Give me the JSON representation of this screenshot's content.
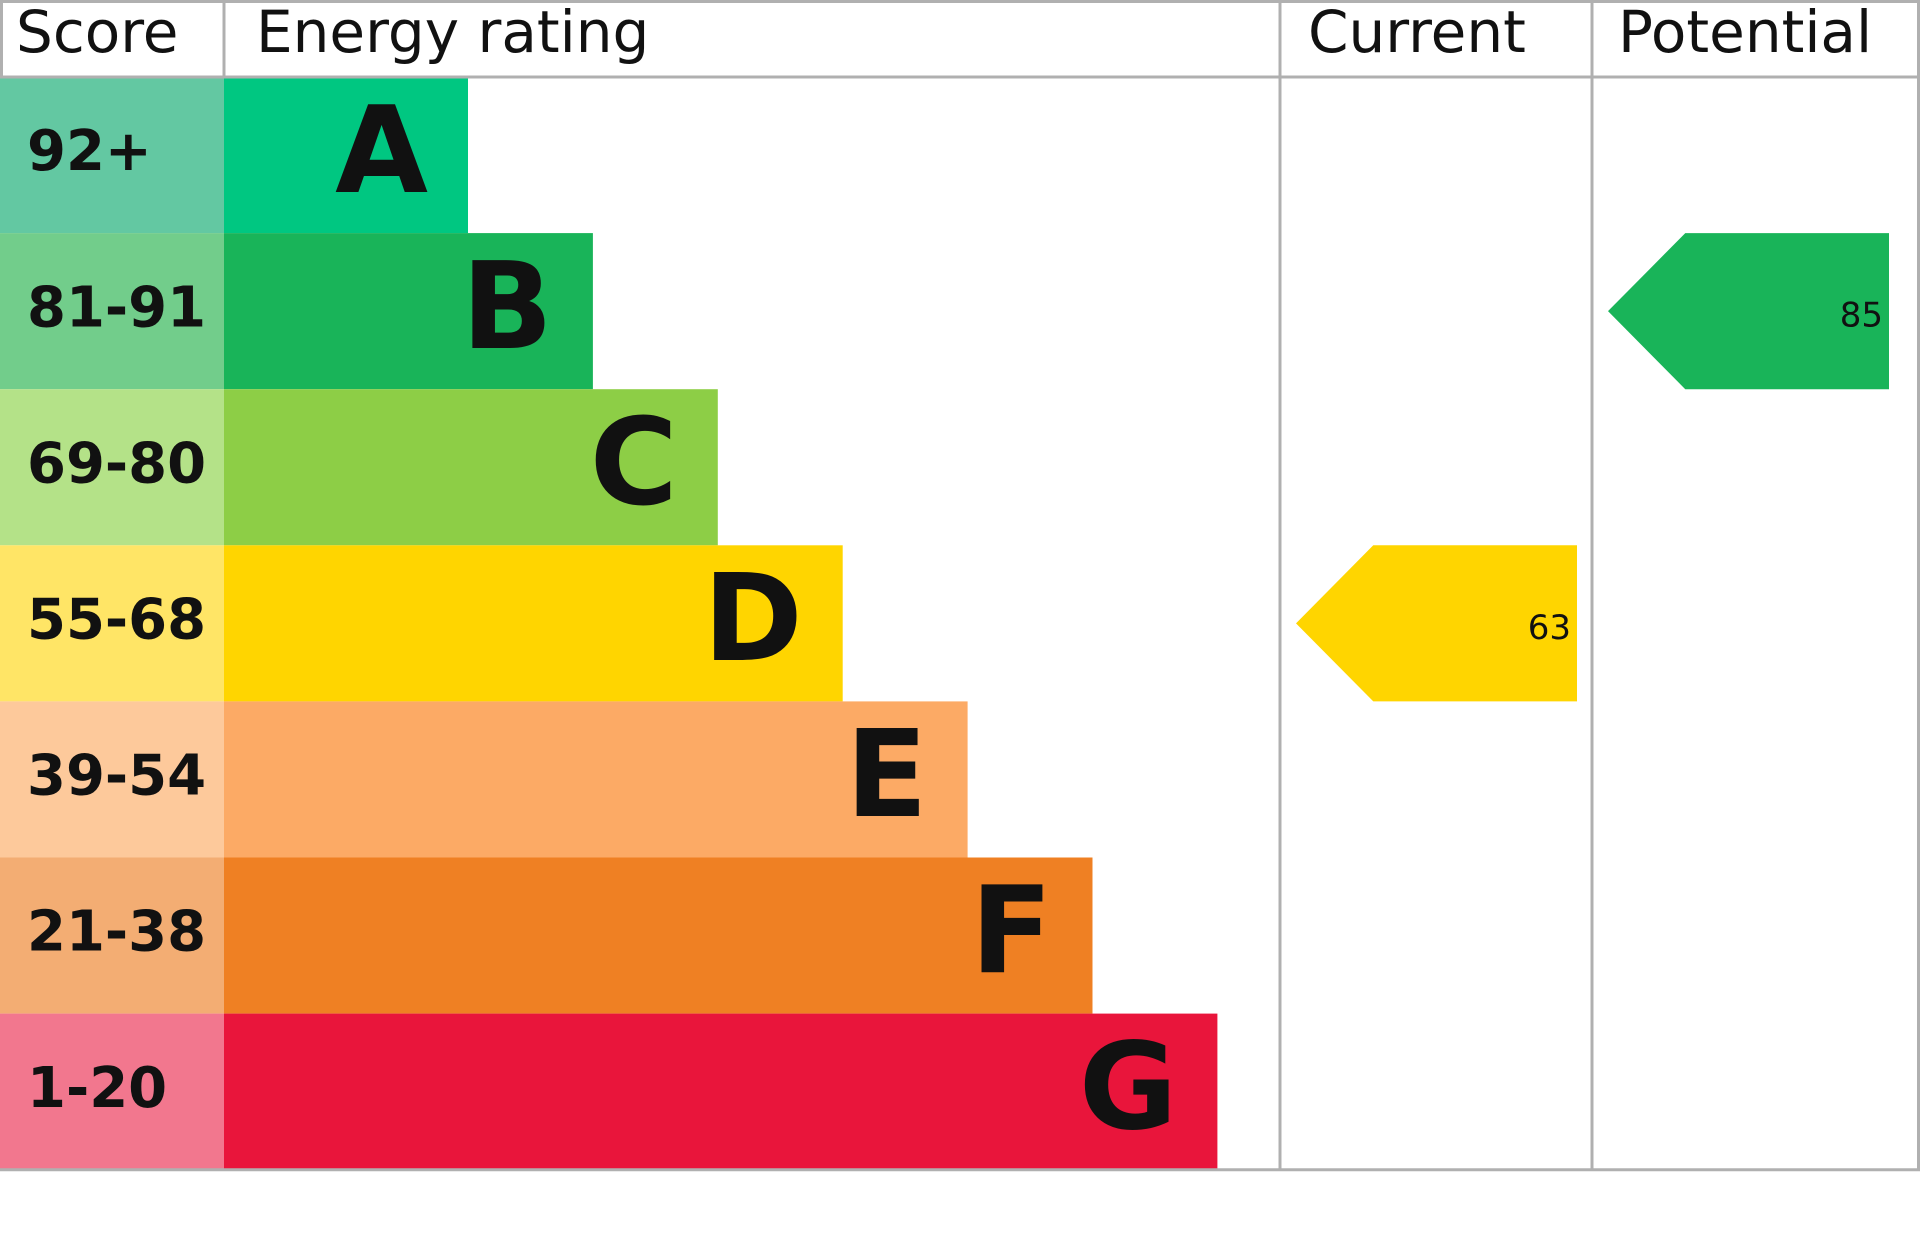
{
  "chart_data": {
    "type": "epc",
    "headers": {
      "score": "Score",
      "rating": "Energy rating",
      "current": "Current",
      "potential": "Potential"
    },
    "bands": [
      {
        "score": "92+",
        "letter": "A",
        "color": "#00c781",
        "score_color": "#63c8a2"
      },
      {
        "score": "81-91",
        "letter": "B",
        "color": "#19b459",
        "score_color": "#72cd8b"
      },
      {
        "score": "69-80",
        "letter": "C",
        "color": "#8dce46",
        "score_color": "#b4e288"
      },
      {
        "score": "55-68",
        "letter": "D",
        "color": "#ffd500",
        "score_color": "#ffe566"
      },
      {
        "score": "39-54",
        "letter": "E",
        "color": "#fcaa65",
        "score_color": "#fdc99b"
      },
      {
        "score": "21-38",
        "letter": "F",
        "color": "#ef8023",
        "score_color": "#f3ad73"
      },
      {
        "score": "1-20",
        "letter": "G",
        "color": "#e9153b",
        "score_color": "#f2778e"
      }
    ],
    "current": 63,
    "potential": 85
  }
}
